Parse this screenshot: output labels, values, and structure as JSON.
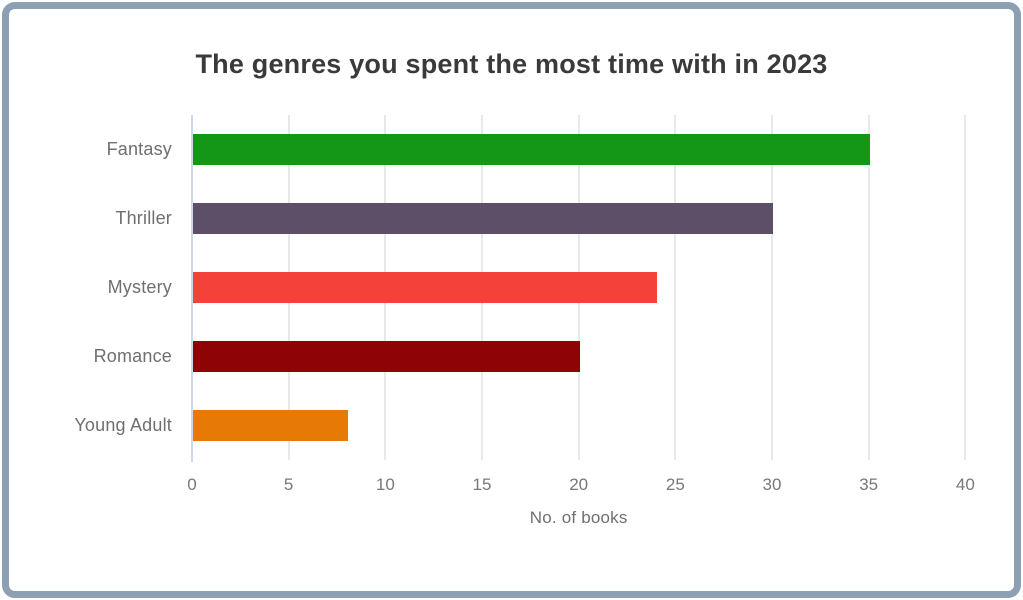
{
  "card": {
    "border_color": "#8ca0b4",
    "background": "#ffffff"
  },
  "chart_data": {
    "type": "bar",
    "orientation": "horizontal",
    "title": "The genres you spent the most time with in 2023",
    "categories": [
      "Fantasy",
      "Thriller",
      "Mystery",
      "Romance",
      "Young Adult"
    ],
    "values": [
      35,
      30,
      24,
      20,
      8
    ],
    "bar_colors": [
      "#149616",
      "#5e4f68",
      "#f4423a",
      "#8e0404",
      "#e67a04"
    ],
    "xlabel": "No. of books",
    "ylabel": "",
    "xlim": [
      0,
      42
    ],
    "xticks": [
      0,
      5,
      10,
      15,
      20,
      25,
      30,
      35,
      40
    ],
    "grid": true,
    "legend": false,
    "style": {
      "title_color": "#3a3a3a",
      "label_color": "#6f6f6f",
      "tick_color": "#787878",
      "grid_color": "#e8e8e8",
      "axis_line_color": "#cdd9e7"
    }
  }
}
